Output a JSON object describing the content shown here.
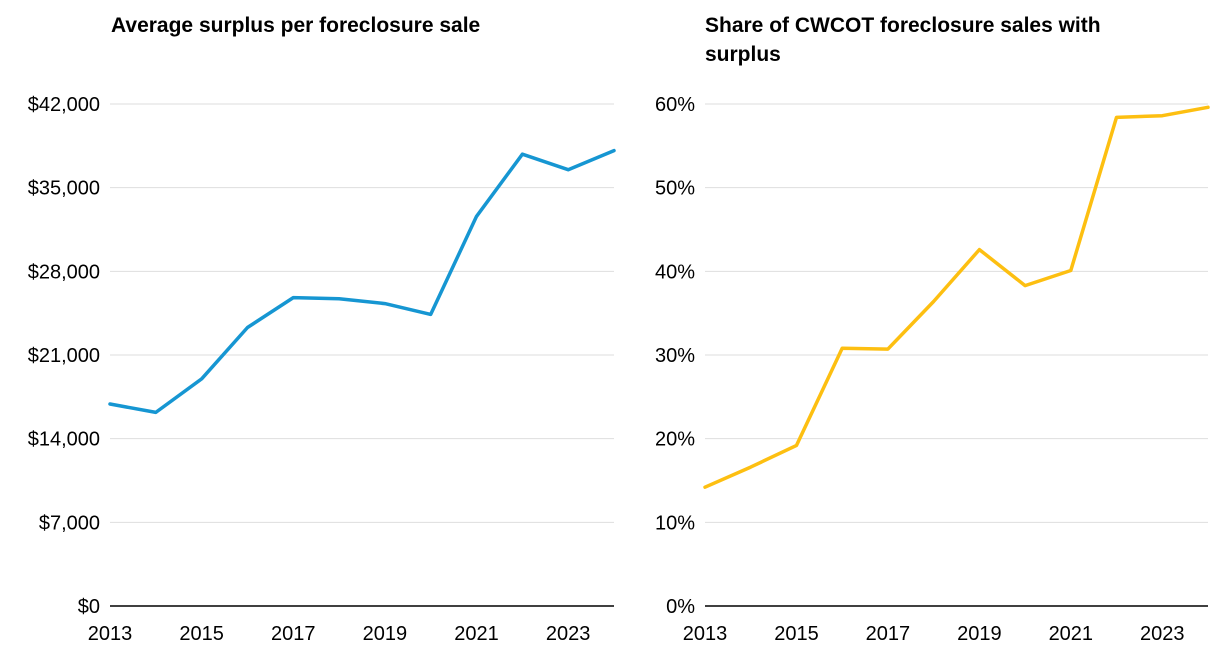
{
  "colors": {
    "blue": "#1696d2",
    "yellow": "#fdbf11",
    "grid": "#dedede",
    "axis": "#000000"
  },
  "chart_data": [
    {
      "type": "line",
      "title": "Average surplus per foreclosure sale",
      "xlabel": "",
      "ylabel": "",
      "x": [
        2013,
        2014,
        2015,
        2016,
        2017,
        2018,
        2019,
        2020,
        2021,
        2022,
        2023,
        2024
      ],
      "series": [
        {
          "name": "Average surplus",
          "color": "#1696d2",
          "values": [
            16900,
            16200,
            19000,
            23300,
            25800,
            25700,
            25300,
            24400,
            32600,
            37800,
            36500,
            38100
          ]
        }
      ],
      "xlim": [
        2013,
        2024
      ],
      "ylim": [
        0,
        42000
      ],
      "x_ticks": [
        2013,
        2015,
        2017,
        2019,
        2021,
        2023
      ],
      "x_tick_labels": [
        "2013",
        "2015",
        "2017",
        "2019",
        "2021",
        "2023"
      ],
      "y_ticks": [
        0,
        7000,
        14000,
        21000,
        28000,
        35000,
        42000
      ],
      "y_tick_labels": [
        "$0",
        "$7,000",
        "$14,000",
        "$21,000",
        "$28,000",
        "$35,000",
        "$42,000"
      ],
      "grid": true
    },
    {
      "type": "line",
      "title": "Share of CWCOT foreclosure sales with surplus",
      "xlabel": "",
      "ylabel": "",
      "x": [
        2013,
        2014,
        2015,
        2016,
        2017,
        2018,
        2019,
        2020,
        2021,
        2022,
        2023,
        2024
      ],
      "series": [
        {
          "name": "Share with surplus",
          "color": "#fdbf11",
          "values": [
            14.2,
            16.6,
            19.2,
            30.8,
            30.7,
            36.4,
            42.6,
            38.3,
            40.1,
            58.4,
            58.6,
            59.6
          ]
        }
      ],
      "xlim": [
        2013,
        2024
      ],
      "ylim": [
        0,
        60
      ],
      "x_ticks": [
        2013,
        2015,
        2017,
        2019,
        2021,
        2023
      ],
      "x_tick_labels": [
        "2013",
        "2015",
        "2017",
        "2019",
        "2021",
        "2023"
      ],
      "y_ticks": [
        0,
        10,
        20,
        30,
        40,
        50,
        60
      ],
      "y_tick_labels": [
        "0%",
        "10%",
        "20%",
        "30%",
        "40%",
        "50%",
        "60%"
      ],
      "grid": true
    }
  ]
}
